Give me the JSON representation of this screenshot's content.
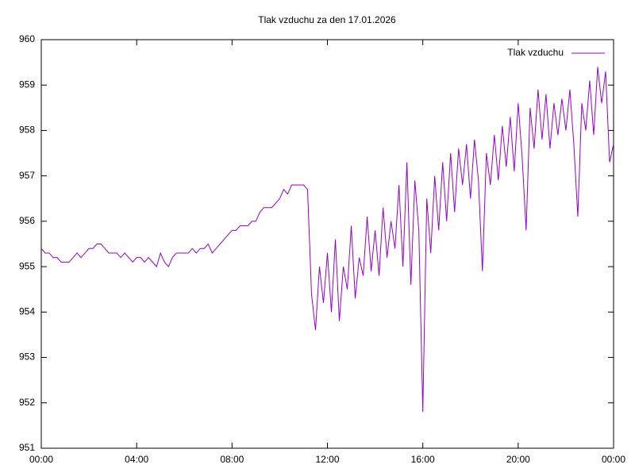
{
  "chart_data": {
    "type": "line",
    "title": "Tlak vzduchu za den 17.01.2026",
    "x": [
      0,
      10,
      20,
      30,
      40,
      50,
      60,
      70,
      80,
      90,
      100,
      110,
      120,
      130,
      140,
      150,
      160,
      170,
      180,
      190,
      200,
      210,
      220,
      230,
      240,
      250,
      260,
      270,
      280,
      290,
      300,
      310,
      320,
      330,
      340,
      350,
      360,
      370,
      380,
      390,
      400,
      410,
      420,
      430,
      440,
      450,
      460,
      470,
      480,
      490,
      500,
      510,
      520,
      530,
      540,
      550,
      560,
      570,
      580,
      590,
      600,
      610,
      620,
      630,
      640,
      650,
      660,
      670,
      680,
      690,
      700,
      710,
      720,
      730,
      740,
      750,
      760,
      770,
      780,
      790,
      800,
      810,
      820,
      830,
      840,
      850,
      860,
      870,
      880,
      890,
      900,
      910,
      920,
      930,
      940,
      950,
      960,
      970,
      980,
      990,
      1000,
      1010,
      1020,
      1030,
      1040,
      1050,
      1060,
      1070,
      1080,
      1090,
      1100,
      1110,
      1120,
      1130,
      1140,
      1150,
      1160,
      1170,
      1180,
      1190,
      1200,
      1210,
      1220,
      1230,
      1240,
      1250,
      1260,
      1270,
      1280,
      1290,
      1300,
      1310,
      1320,
      1330,
      1340,
      1350,
      1360,
      1370,
      1380,
      1390,
      1400,
      1410,
      1420,
      1430,
      1440
    ],
    "series": [
      {
        "name": "Tlak vzduchu",
        "color": "#9400d3",
        "values": [
          955.4,
          955.3,
          955.3,
          955.2,
          955.2,
          955.1,
          955.1,
          955.1,
          955.2,
          955.3,
          955.2,
          955.3,
          955.4,
          955.4,
          955.5,
          955.5,
          955.4,
          955.3,
          955.3,
          955.3,
          955.2,
          955.3,
          955.2,
          955.1,
          955.2,
          955.2,
          955.1,
          955.2,
          955.1,
          955.0,
          955.3,
          955.1,
          955.0,
          955.2,
          955.3,
          955.3,
          955.3,
          955.3,
          955.4,
          955.3,
          955.4,
          955.4,
          955.5,
          955.3,
          955.4,
          955.5,
          955.6,
          955.7,
          955.8,
          955.8,
          955.9,
          955.9,
          955.9,
          956.0,
          956.0,
          956.2,
          956.3,
          956.3,
          956.3,
          956.4,
          956.5,
          956.7,
          956.6,
          956.8,
          956.8,
          956.8,
          956.8,
          956.7,
          954.4,
          953.6,
          955.0,
          954.2,
          955.3,
          954.0,
          955.6,
          953.8,
          955.0,
          954.5,
          955.9,
          954.3,
          955.2,
          954.8,
          956.1,
          954.9,
          955.8,
          954.8,
          956.3,
          955.2,
          956.0,
          955.4,
          956.8,
          955.0,
          957.3,
          954.6,
          956.9,
          955.8,
          951.8,
          956.5,
          955.3,
          957.0,
          955.8,
          957.3,
          956.0,
          957.5,
          956.2,
          957.6,
          956.8,
          957.7,
          956.5,
          957.8,
          956.9,
          954.9,
          957.5,
          956.8,
          957.9,
          956.9,
          958.1,
          957.2,
          958.3,
          957.1,
          958.6,
          957.4,
          955.8,
          958.5,
          957.6,
          958.9,
          957.8,
          958.8,
          957.6,
          958.6,
          957.9,
          958.7,
          958.0,
          958.9,
          957.7,
          956.1,
          958.6,
          958.0,
          959.1,
          957.9,
          959.4,
          958.6,
          959.3,
          957.3,
          957.7
        ]
      }
    ],
    "xlim": [
      0,
      1440
    ],
    "xticks": [
      {
        "value": 0,
        "label": "00:00"
      },
      {
        "value": 240,
        "label": "04:00"
      },
      {
        "value": 480,
        "label": "08:00"
      },
      {
        "value": 720,
        "label": "12:00"
      },
      {
        "value": 960,
        "label": "16:00"
      },
      {
        "value": 1200,
        "label": "20:00"
      },
      {
        "value": 1440,
        "label": "00:00"
      }
    ],
    "ylim": [
      951,
      960
    ],
    "yticks": [
      951,
      952,
      953,
      954,
      955,
      956,
      957,
      958,
      959,
      960
    ],
    "legend": "top-right"
  }
}
